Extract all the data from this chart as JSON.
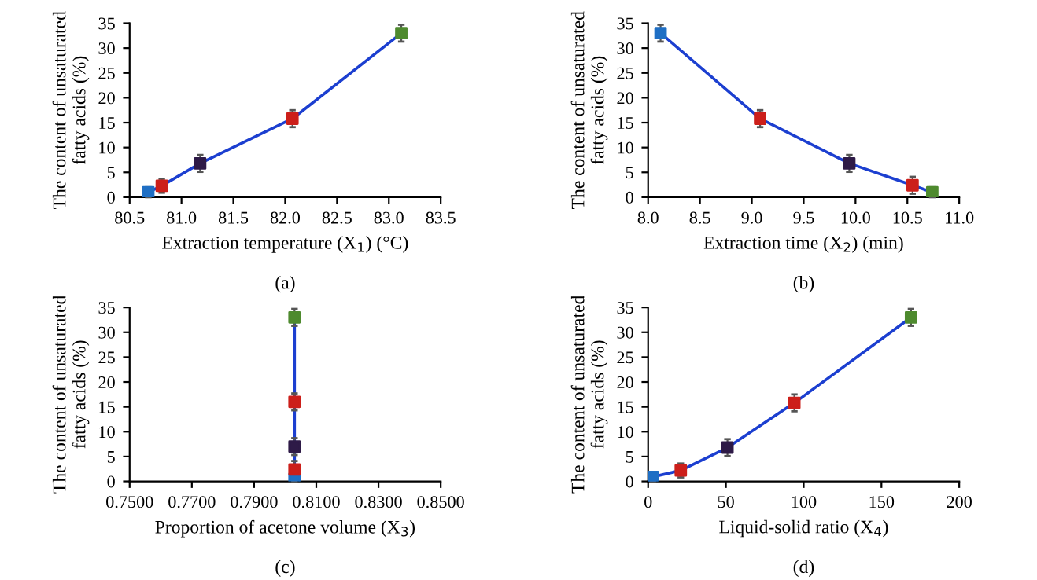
{
  "chart_data": [
    {
      "type": "line",
      "xlabel": "Extraction temperature (X$_{1}$) (°C)",
      "ylabel": "The content of unsaturated\nfatty acids (%)",
      "annotations": [
        "(a)"
      ],
      "marker": "square",
      "grid": false,
      "x": [
        80.68,
        80.81,
        81.18,
        82.07,
        83.12
      ],
      "series": [
        {
          "color": "#1c3fd0",
          "colors": [
            "#1f6fc4",
            "#cc1f1a",
            "#2e1a47",
            "#cc1f1a",
            "#4e8a2e"
          ],
          "values": [
            1.0,
            2.3,
            6.8,
            15.8,
            33.0
          ],
          "errors": [
            1.0,
            1.4,
            1.7,
            1.7,
            1.7
          ]
        }
      ],
      "xlim": [
        80.5,
        83.5
      ],
      "xticks": [
        {
          "value": 80.5,
          "label": "80.5"
        },
        {
          "value": 81.0,
          "label": "81.0"
        },
        {
          "value": 81.5,
          "label": "81.5"
        },
        {
          "value": 82.0,
          "label": "82.0"
        },
        {
          "value": 82.5,
          "label": "82.5"
        },
        {
          "value": 83.0,
          "label": "83.0"
        },
        {
          "value": 83.5,
          "label": "83.5"
        }
      ],
      "ylim": [
        0,
        35
      ],
      "yticks": [
        0,
        5,
        10,
        15,
        20,
        25,
        30,
        35
      ]
    },
    {
      "type": "line",
      "xlabel": "Extraction time (X$_{2}$) (min)",
      "ylabel": "The content of unsaturated\nfatty acids (%)",
      "annotations": [
        "(b)"
      ],
      "marker": "square",
      "grid": false,
      "x": [
        8.12,
        9.08,
        9.94,
        10.55,
        10.74
      ],
      "series": [
        {
          "color": "#1c3fd0",
          "colors": [
            "#1f6fc4",
            "#cc1f1a",
            "#2e1a47",
            "#cc1f1a",
            "#4e8a2e"
          ],
          "values": [
            33.0,
            15.8,
            6.8,
            2.4,
            1.0
          ],
          "errors": [
            1.7,
            1.7,
            1.7,
            1.7,
            1.0
          ]
        }
      ],
      "xlim": [
        8.0,
        11.0
      ],
      "xticks": [
        {
          "value": 8.0,
          "label": "8.0"
        },
        {
          "value": 8.5,
          "label": "8.5"
        },
        {
          "value": 9.0,
          "label": "9.0"
        },
        {
          "value": 9.5,
          "label": "9.5"
        },
        {
          "value": 10.0,
          "label": "10.0"
        },
        {
          "value": 10.5,
          "label": "10.5"
        },
        {
          "value": 11.0,
          "label": "11.0"
        }
      ],
      "ylim": [
        0,
        35
      ],
      "yticks": [
        0,
        5,
        10,
        15,
        20,
        25,
        30,
        35
      ]
    },
    {
      "type": "line",
      "xlabel": "Proportion of acetone volume (X$_{3}$)",
      "ylabel": "The content of unsaturated\nfatty acids (%)",
      "annotations": [
        "(c)"
      ],
      "marker": "square",
      "grid": false,
      "x": [
        0.803,
        0.803,
        0.803,
        0.803,
        0.803
      ],
      "series": [
        {
          "color": "#1c3fd0",
          "colors": [
            "#1f6fc4",
            "#cc1f1a",
            "#2e1a47",
            "#cc1f1a",
            "#4e8a2e"
          ],
          "values": [
            0.5,
            2.4,
            7.0,
            16.0,
            33.0
          ],
          "errors": [
            0.5,
            1.7,
            1.7,
            1.7,
            1.7
          ]
        }
      ],
      "xlim": [
        0.75,
        0.85
      ],
      "xticks": [
        {
          "value": 0.75,
          "label": "0.7500"
        },
        {
          "value": 0.77,
          "label": "0.7700"
        },
        {
          "value": 0.79,
          "label": "0.7900"
        },
        {
          "value": 0.81,
          "label": "0.8100"
        },
        {
          "value": 0.83,
          "label": "0.8300"
        },
        {
          "value": 0.85,
          "label": "0.8500"
        }
      ],
      "ylim": [
        0,
        35
      ],
      "yticks": [
        0,
        5,
        10,
        15,
        20,
        25,
        30,
        35
      ]
    },
    {
      "type": "line",
      "xlabel": "Liquid-solid ratio (X$_{4}$)",
      "ylabel": "The content of unsaturated\nfatty acids (%)",
      "annotations": [
        "(d)"
      ],
      "marker": "square",
      "grid": false,
      "x": [
        3,
        21,
        51,
        94,
        169
      ],
      "series": [
        {
          "color": "#1c3fd0",
          "colors": [
            "#1f6fc4",
            "#cc1f1a",
            "#2e1a47",
            "#cc1f1a",
            "#4e8a2e"
          ],
          "values": [
            0.9,
            2.2,
            6.8,
            15.8,
            33.0
          ],
          "errors": [
            0.9,
            1.4,
            1.7,
            1.7,
            1.7
          ]
        }
      ],
      "xlim": [
        0,
        200
      ],
      "xticks": [
        0,
        50,
        100,
        150,
        200
      ],
      "ylim": [
        0,
        35
      ],
      "yticks": [
        0,
        5,
        10,
        15,
        20,
        25,
        30,
        35
      ]
    }
  ]
}
